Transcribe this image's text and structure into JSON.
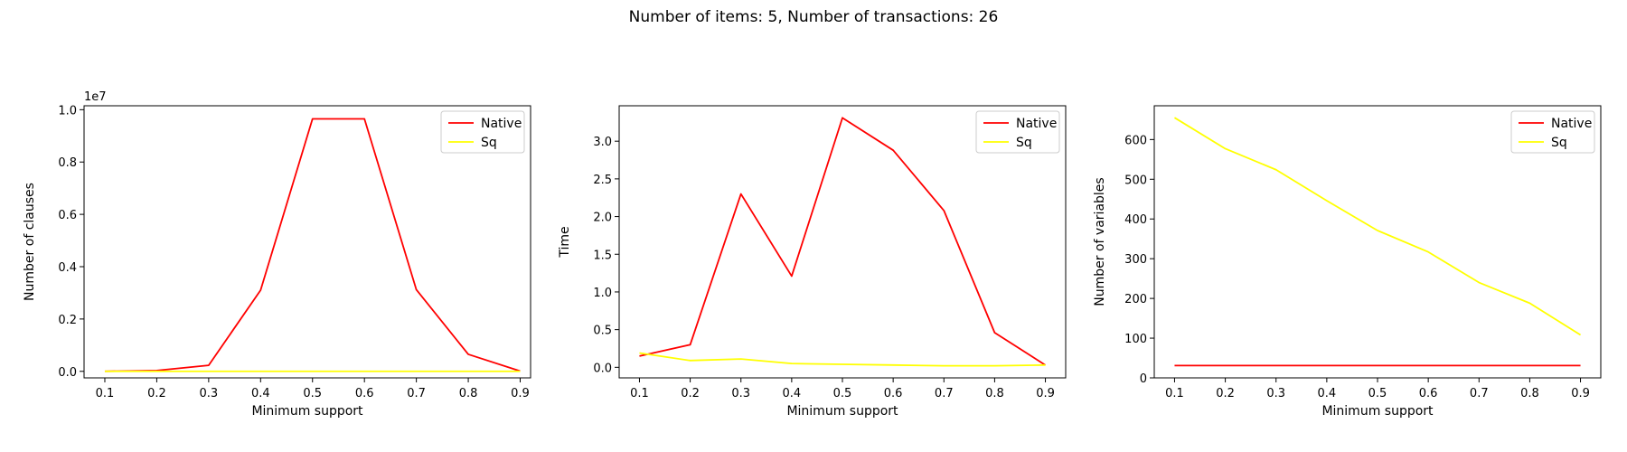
{
  "figure": {
    "title": "Number of items: 5, Number of transactions: 26"
  },
  "chart_data": [
    {
      "type": "line",
      "x": [
        0.1,
        0.2,
        0.3,
        0.4,
        0.5,
        0.6,
        0.7,
        0.8,
        0.9
      ],
      "xticks": [
        "0.1",
        "0.2",
        "0.3",
        "0.4",
        "0.5",
        "0.6",
        "0.7",
        "0.8",
        "0.9"
      ],
      "xlabel": "Minimum support",
      "ylabel": "Number of clauses",
      "yticks": [
        "0.0",
        "0.2",
        "0.4",
        "0.6",
        "0.8",
        "1.0"
      ],
      "ytick_values": [
        0,
        2000000,
        4000000,
        6000000,
        8000000,
        10000000
      ],
      "y_offset_label": "1e7",
      "xlim": [
        0.06,
        0.92
      ],
      "ylim": [
        -250000,
        10150000
      ],
      "legend_position": "upper right",
      "series": [
        {
          "name": "Native",
          "color": "#ff0000",
          "values": [
            0,
            30000,
            230000,
            3100000,
            9650000,
            9650000,
            3120000,
            650000,
            10000
          ]
        },
        {
          "name": "Sq",
          "color": "#ffff00",
          "values": [
            1000,
            1000,
            1000,
            1000,
            1000,
            1000,
            1000,
            1000,
            1000
          ]
        }
      ]
    },
    {
      "type": "line",
      "x": [
        0.1,
        0.2,
        0.3,
        0.4,
        0.5,
        0.6,
        0.7,
        0.8,
        0.9
      ],
      "xticks": [
        "0.1",
        "0.2",
        "0.3",
        "0.4",
        "0.5",
        "0.6",
        "0.7",
        "0.8",
        "0.9"
      ],
      "xlabel": "Minimum support",
      "ylabel": "Time",
      "yticks": [
        "0.0",
        "0.5",
        "1.0",
        "1.5",
        "2.0",
        "2.5",
        "3.0"
      ],
      "ytick_values": [
        0,
        0.5,
        1.0,
        1.5,
        2.0,
        2.5,
        3.0
      ],
      "y_offset_label": "",
      "xlim": [
        0.06,
        0.94
      ],
      "ylim": [
        -0.14,
        3.47
      ],
      "legend_position": "upper right",
      "series": [
        {
          "name": "Native",
          "color": "#ff0000",
          "values": [
            0.15,
            0.3,
            2.3,
            1.21,
            3.31,
            2.88,
            2.08,
            0.46,
            0.03
          ]
        },
        {
          "name": "Sq",
          "color": "#ffff00",
          "values": [
            0.19,
            0.09,
            0.11,
            0.05,
            0.04,
            0.03,
            0.02,
            0.02,
            0.03
          ]
        }
      ]
    },
    {
      "type": "line",
      "x": [
        0.1,
        0.2,
        0.3,
        0.4,
        0.5,
        0.6,
        0.7,
        0.8,
        0.9
      ],
      "xticks": [
        "0.1",
        "0.2",
        "0.3",
        "0.4",
        "0.5",
        "0.6",
        "0.7",
        "0.8",
        "0.9"
      ],
      "xlabel": "Minimum support",
      "ylabel": "Number of variables",
      "yticks": [
        "0",
        "100",
        "200",
        "300",
        "400",
        "500",
        "600"
      ],
      "ytick_values": [
        0,
        100,
        200,
        300,
        400,
        500,
        600
      ],
      "y_offset_label": "",
      "xlim": [
        0.06,
        0.94
      ],
      "ylim": [
        0,
        685
      ],
      "legend_position": "upper right",
      "series": [
        {
          "name": "Native",
          "color": "#ff0000",
          "values": [
            31,
            31,
            31,
            31,
            31,
            31,
            31,
            31,
            31
          ]
        },
        {
          "name": "Sq",
          "color": "#ffff00",
          "values": [
            655,
            577,
            524,
            446,
            371,
            317,
            240,
            188,
            108
          ]
        }
      ]
    }
  ]
}
